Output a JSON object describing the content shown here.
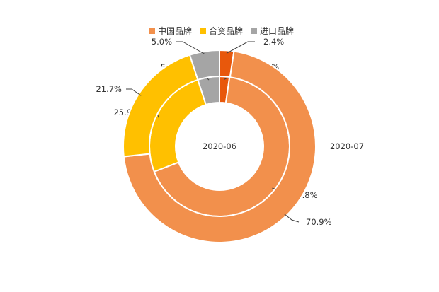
{
  "chart_data": {
    "type": "donut",
    "legend_position": "top-center",
    "legend": [
      {
        "name": "中国品牌",
        "color": "#f2904c"
      },
      {
        "name": "合资品牌",
        "color": "#ffc000"
      },
      {
        "name": "进口品牌",
        "color": "#a5a5a5"
      }
    ],
    "highlight_color": "#e8580c",
    "rings": [
      {
        "ring": "inner",
        "name": "2020-06",
        "values": [
          {
            "category": "",
            "value": 2.3,
            "label": "2.3%"
          },
          {
            "category": "中国品牌",
            "value": 66.8,
            "label": "66.8%"
          },
          {
            "category": "合资品牌",
            "value": 25.9,
            "label": "25.9%"
          },
          {
            "category": "进口品牌",
            "value": 5.0,
            "label": "5.0%"
          }
        ]
      },
      {
        "ring": "outer",
        "name": "2020-07",
        "values": [
          {
            "category": "",
            "value": 2.4,
            "label": "2.4%"
          },
          {
            "category": "中国品牌",
            "value": 70.9,
            "label": "70.9%"
          },
          {
            "category": "合资品牌",
            "value": 21.7,
            "label": "21.7%"
          },
          {
            "category": "进口品牌",
            "value": 5.0,
            "label": "5.0%"
          }
        ]
      }
    ]
  }
}
